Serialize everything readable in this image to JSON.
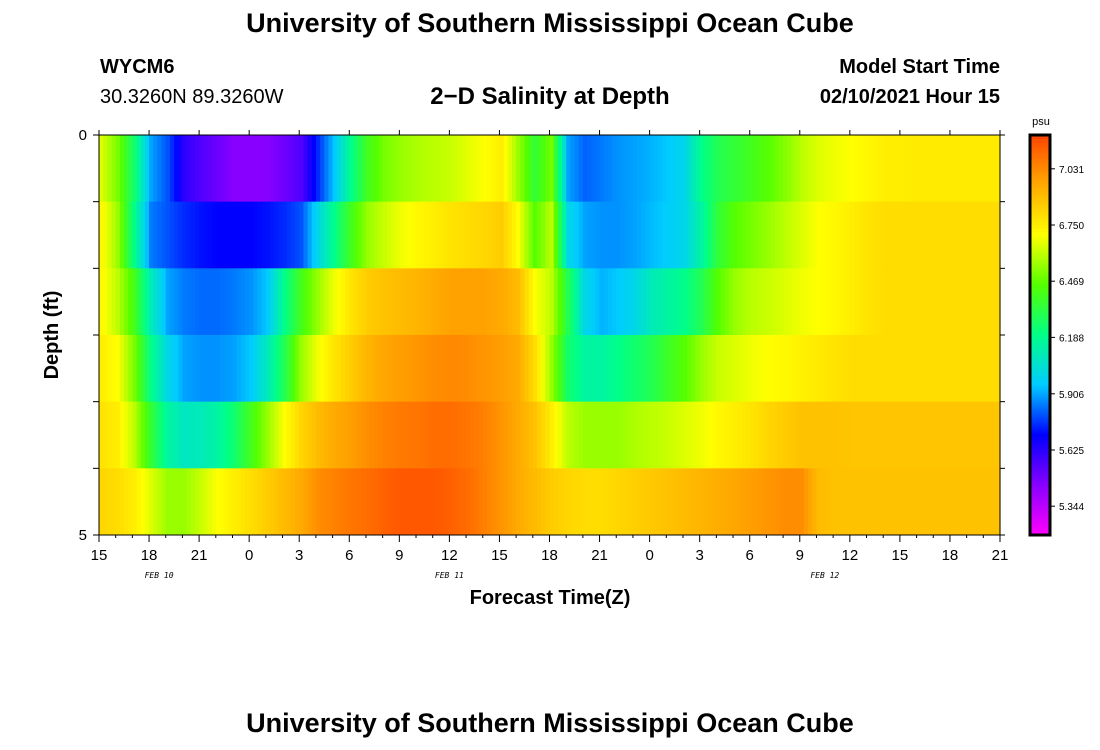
{
  "header": {
    "title": "University of Southern Mississippi Ocean Cube",
    "station_id": "WYCM6",
    "coordinates": "30.3260N 89.3260W",
    "model_start_label": "Model Start Time",
    "model_start_value": "02/10/2021 Hour 15"
  },
  "footer": {
    "title": "University of Southern Mississippi Ocean Cube"
  },
  "colors": {
    "colormap": [
      "#ff00ff",
      "#8800ff",
      "#0000ff",
      "#00ccff",
      "#00ff88",
      "#55ff00",
      "#ffff00",
      "#ffaa00",
      "#ff4400"
    ]
  },
  "chart_data": {
    "type": "heatmap",
    "title": "2−D Salinity at Depth",
    "xlabel": "Forecast Time(Z)",
    "ylabel": "Depth (ft)",
    "x_tick_labels": [
      "15",
      "18",
      "21",
      "0",
      "3",
      "6",
      "9",
      "12",
      "15",
      "18",
      "21",
      "0",
      "3",
      "6",
      "9",
      "12",
      "15",
      "18",
      "21"
    ],
    "date_labels": [
      {
        "label": "FEB 10",
        "hour_index": 3.6
      },
      {
        "label": "FEB 11",
        "hour_index": 21
      },
      {
        "label": "FEB 12",
        "hour_index": 43.5
      }
    ],
    "x_range_hours": [
      0,
      54
    ],
    "y_tick_labels": [
      "0",
      "5"
    ],
    "y_range": [
      0,
      5
    ],
    "colorbar": {
      "unit": "psu",
      "tick_labels": [
        "7.031",
        "6.750",
        "6.469",
        "6.188",
        "5.906",
        "5.625",
        "5.344"
      ],
      "range": [
        5.2,
        7.2
      ]
    },
    "hours": [
      0,
      1,
      2,
      3,
      4,
      5,
      6,
      7,
      8,
      9,
      10,
      11,
      12,
      13,
      14,
      15,
      16,
      17,
      18,
      19,
      20,
      21,
      22,
      23,
      24,
      25,
      26,
      27,
      28,
      29,
      30,
      31,
      32,
      33,
      34,
      35,
      36,
      37,
      38,
      39,
      40,
      41,
      42,
      43,
      44,
      45,
      46,
      47,
      48,
      49,
      50,
      51,
      52,
      53,
      54
    ],
    "depth_layers": [
      {
        "salinity": [
          6.65,
          6.5,
          6.25,
          5.9,
          5.8,
          5.62,
          5.55,
          5.5,
          5.45,
          5.45,
          5.45,
          5.5,
          5.55,
          5.75,
          5.95,
          6.2,
          6.4,
          6.5,
          6.55,
          6.58,
          6.6,
          6.62,
          6.66,
          6.7,
          6.75,
          6.55,
          6.35,
          6.5,
          5.9,
          5.82,
          5.85,
          5.88,
          5.9,
          5.92,
          5.95,
          6.0,
          6.2,
          6.3,
          6.35,
          6.4,
          6.45,
          6.52,
          6.6,
          6.65,
          6.68,
          6.7,
          6.72,
          6.75,
          6.75,
          6.76,
          6.76,
          6.76,
          6.76,
          6.76,
          6.76
        ]
      },
      {
        "salinity": [
          6.72,
          6.55,
          6.2,
          5.85,
          5.8,
          5.75,
          5.72,
          5.7,
          5.7,
          5.7,
          5.72,
          5.75,
          5.8,
          6.0,
          6.2,
          6.4,
          6.55,
          6.62,
          6.68,
          6.72,
          6.75,
          6.78,
          6.8,
          6.82,
          6.85,
          6.7,
          6.45,
          6.6,
          6.0,
          5.9,
          5.88,
          5.88,
          5.9,
          5.93,
          5.96,
          6.0,
          6.15,
          6.35,
          6.45,
          6.5,
          6.55,
          6.6,
          6.65,
          6.7,
          6.72,
          6.75,
          6.78,
          6.8,
          6.8,
          6.8,
          6.8,
          6.8,
          6.8,
          6.8,
          6.8
        ]
      },
      {
        "salinity": [
          6.72,
          6.6,
          6.4,
          6.1,
          5.9,
          5.85,
          5.83,
          5.83,
          5.85,
          5.88,
          5.95,
          6.2,
          6.4,
          6.55,
          6.68,
          6.78,
          6.85,
          6.88,
          6.9,
          6.92,
          6.95,
          6.97,
          6.97,
          6.97,
          6.95,
          6.9,
          6.7,
          6.6,
          6.3,
          6.0,
          5.92,
          5.95,
          6.0,
          6.1,
          6.15,
          6.2,
          6.3,
          6.45,
          6.55,
          6.6,
          6.62,
          6.65,
          6.68,
          6.7,
          6.72,
          6.75,
          6.78,
          6.8,
          6.8,
          6.8,
          6.8,
          6.8,
          6.8,
          6.8,
          6.8
        ]
      },
      {
        "salinity": [
          6.75,
          6.7,
          6.5,
          6.2,
          6.0,
          5.9,
          5.88,
          5.88,
          5.9,
          5.95,
          6.1,
          6.3,
          6.55,
          6.68,
          6.78,
          6.85,
          6.92,
          6.96,
          6.98,
          7.0,
          7.02,
          7.03,
          7.02,
          7.0,
          6.98,
          6.95,
          6.8,
          6.55,
          6.25,
          6.15,
          6.15,
          6.2,
          6.25,
          6.3,
          6.38,
          6.45,
          6.55,
          6.62,
          6.65,
          6.68,
          6.7,
          6.72,
          6.74,
          6.76,
          6.78,
          6.8,
          6.8,
          6.8,
          6.8,
          6.8,
          6.8,
          6.8,
          6.8,
          6.8,
          6.8
        ]
      },
      {
        "salinity": [
          6.78,
          6.75,
          6.6,
          6.35,
          6.15,
          6.08,
          6.1,
          6.15,
          6.25,
          6.4,
          6.55,
          6.7,
          6.82,
          6.9,
          6.95,
          6.98,
          7.02,
          7.05,
          7.07,
          7.08,
          7.1,
          7.1,
          7.08,
          7.05,
          7.0,
          6.95,
          6.88,
          6.75,
          6.6,
          6.55,
          6.55,
          6.55,
          6.58,
          6.6,
          6.62,
          6.65,
          6.68,
          6.72,
          6.75,
          6.78,
          6.82,
          6.85,
          6.88,
          6.88,
          6.88,
          6.87,
          6.87,
          6.87,
          6.87,
          6.87,
          6.87,
          6.87,
          6.87,
          6.87,
          6.87
        ]
      },
      {
        "salinity": [
          6.82,
          6.8,
          6.75,
          6.65,
          6.55,
          6.55,
          6.62,
          6.7,
          6.75,
          6.8,
          6.85,
          6.9,
          6.95,
          7.02,
          7.05,
          7.08,
          7.1,
          7.13,
          7.15,
          7.15,
          7.15,
          7.13,
          7.1,
          7.05,
          7.0,
          6.95,
          6.9,
          6.85,
          6.82,
          6.8,
          6.8,
          6.82,
          6.84,
          6.86,
          6.88,
          6.9,
          6.92,
          6.94,
          6.96,
          6.98,
          7.0,
          7.02,
          7.02,
          6.9,
          6.88,
          6.88,
          6.88,
          6.88,
          6.88,
          6.88,
          6.88,
          6.88,
          6.88,
          6.88,
          6.88
        ]
      }
    ]
  }
}
